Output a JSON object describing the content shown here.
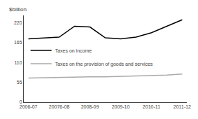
{
  "chart_data": {
    "type": "line",
    "ylabel": "$billion",
    "x": [
      0,
      0.5,
      1,
      1.5,
      2,
      2.5,
      3,
      3.5,
      4,
      4.5,
      5
    ],
    "series": [
      {
        "name": "Taxes on income",
        "color": "#000000",
        "values": [
          175,
          178,
          180,
          210,
          208,
          178,
          175,
          180,
          192,
          210,
          228
        ]
      },
      {
        "name": "Taxes on the provision of goods and services",
        "color": "#aaaaaa",
        "values": [
          67,
          68,
          69,
          70,
          70,
          70,
          71,
          72,
          73,
          75,
          78
        ]
      }
    ],
    "xlim": [
      -0.15,
      5.15
    ],
    "xticks": [
      {
        "value": 0,
        "label": "2006-07"
      },
      {
        "value": 1,
        "label": "20076-08"
      },
      {
        "value": 2,
        "label": "2008-09"
      },
      {
        "value": 3,
        "label": "2009-10"
      },
      {
        "value": 4,
        "label": "2010-11"
      },
      {
        "value": 5,
        "label": "2011-12"
      }
    ],
    "ylim": [
      0,
      240
    ],
    "yticks": [
      0,
      55,
      110,
      165,
      220
    ],
    "grid": false,
    "legend": "center"
  }
}
